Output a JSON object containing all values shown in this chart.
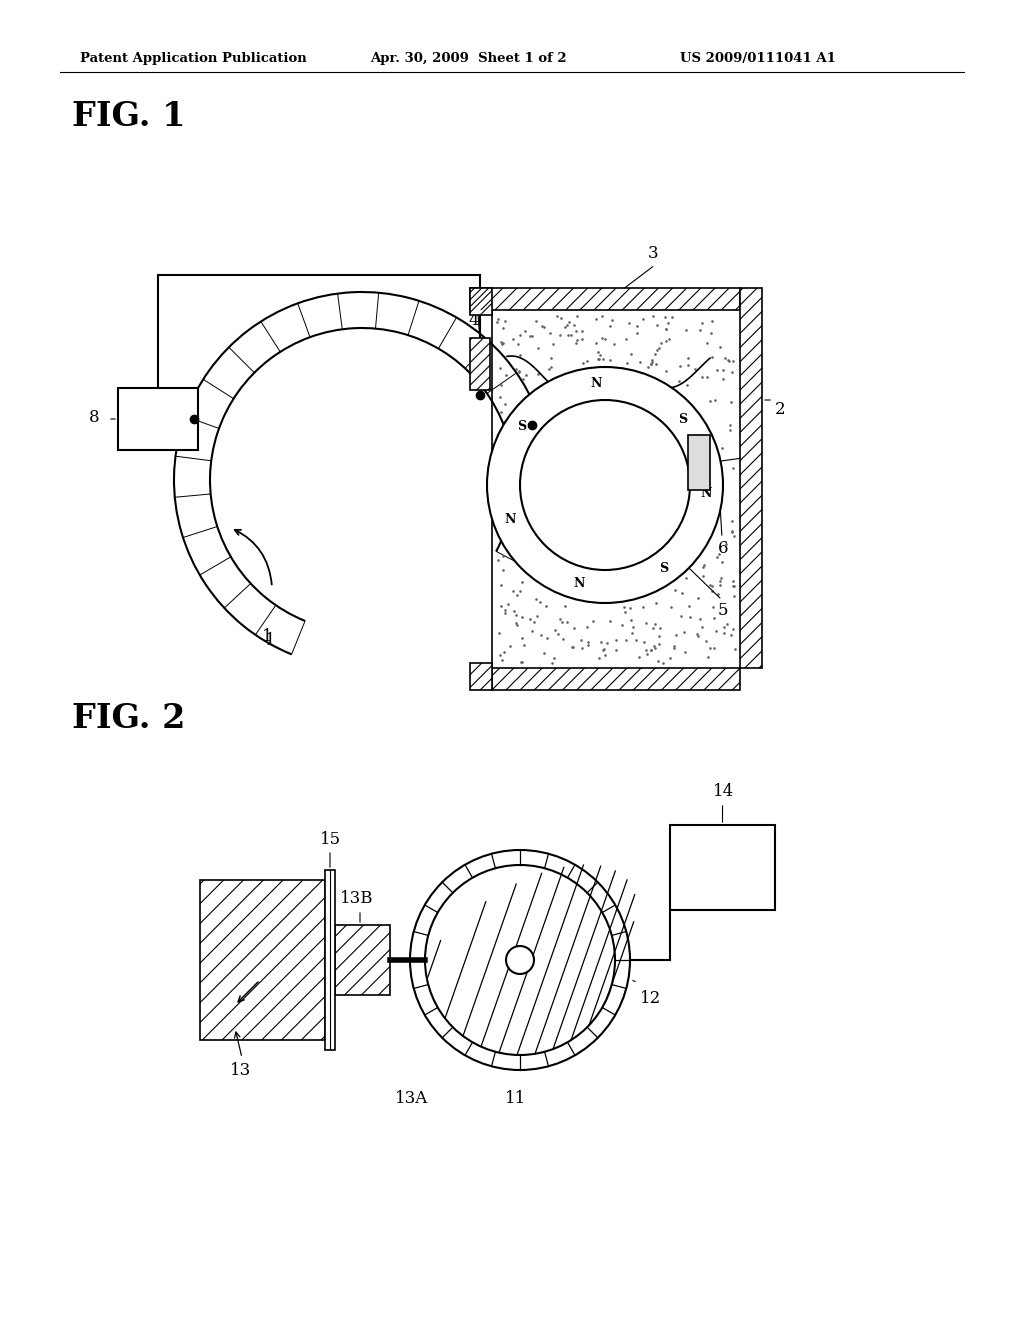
{
  "background_color": "#ffffff",
  "header_left": "Patent Application Publication",
  "header_center": "Apr. 30, 2009  Sheet 1 of 2",
  "header_right": "US 2009/0111041 A1",
  "fig1_label": "FIG. 1",
  "fig2_label": "FIG. 2",
  "line_color": "#000000"
}
